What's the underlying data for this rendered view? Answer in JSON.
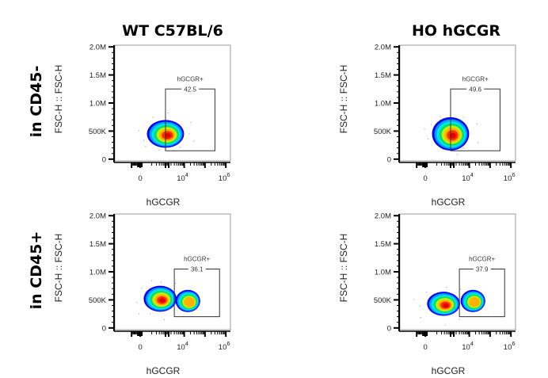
{
  "chart_data": {
    "type": "scatter",
    "subtype": "flow-cytometry-density-plot-grid",
    "columns": [
      "WT C57BL/6",
      "HO hGCGR"
    ],
    "rows": [
      "in CD45-",
      "in CD45+"
    ],
    "xlabel": "hGCGR",
    "ylabel": "FSC-H :: FSC-H",
    "y_ticks": [
      {
        "value": 0,
        "label": "0"
      },
      {
        "value": 500000,
        "label": "500K"
      },
      {
        "value": 1000000,
        "label": "1.0M"
      },
      {
        "value": 1500000,
        "label": "1.5M"
      },
      {
        "value": 2000000,
        "label": "2.0M"
      }
    ],
    "x_ticks": [
      {
        "value": 0,
        "base": "0",
        "exp": ""
      },
      {
        "value": 10000,
        "base": "10",
        "exp": "4"
      },
      {
        "value": 1000000,
        "base": "10",
        "exp": "6"
      }
    ],
    "ylim": [
      0,
      2000000
    ],
    "xscale": "biexponential",
    "colormap": [
      "#0000ff",
      "#00a0ff",
      "#00e5e5",
      "#00e070",
      "#c8f000",
      "#ffb000",
      "#ff3000",
      "#e00000"
    ],
    "panels": [
      {
        "column": "WT C57BL/6",
        "row": "in CD45-",
        "gate": {
          "name": "hGCGR+",
          "percent": "42.5",
          "x_min": 1000,
          "x_max": 300000,
          "y_min": 150000,
          "y_max": 1250000
        },
        "populations": [
          {
            "x_center": 1000,
            "y_center": 450000,
            "spread_x": 0.9,
            "spread_y": 150000,
            "peak": 1.0
          }
        ]
      },
      {
        "column": "HO hGCGR",
        "row": "in CD45-",
        "gate": {
          "name": "hGCGR+",
          "percent": "49.6",
          "x_min": 1000,
          "x_max": 300000,
          "y_min": 150000,
          "y_max": 1250000
        },
        "populations": [
          {
            "x_center": 1000,
            "y_center": 450000,
            "spread_x": 0.9,
            "spread_y": 180000,
            "peak": 1.0
          }
        ]
      },
      {
        "column": "WT C57BL/6",
        "row": "in CD45+",
        "gate": {
          "name": "hGCGR+",
          "percent": "36.1",
          "x_min": 3000,
          "x_max": 500000,
          "y_min": 200000,
          "y_max": 1050000
        },
        "populations": [
          {
            "x_center": 500,
            "y_center": 520000,
            "spread_x": 0.8,
            "spread_y": 140000,
            "peak": 1.0
          },
          {
            "x_center": 15000,
            "y_center": 480000,
            "spread_x": 0.6,
            "spread_y": 120000,
            "peak": 0.8
          }
        ]
      },
      {
        "column": "HO hGCGR",
        "row": "in CD45+",
        "gate": {
          "name": "hGCGR+",
          "percent": "37.9",
          "x_min": 3000,
          "x_max": 500000,
          "y_min": 200000,
          "y_max": 1050000
        },
        "populations": [
          {
            "x_center": 400,
            "y_center": 430000,
            "spread_x": 0.8,
            "spread_y": 130000,
            "peak": 1.0
          },
          {
            "x_center": 15000,
            "y_center": 480000,
            "spread_x": 0.6,
            "spread_y": 120000,
            "peak": 0.75
          }
        ]
      }
    ]
  }
}
